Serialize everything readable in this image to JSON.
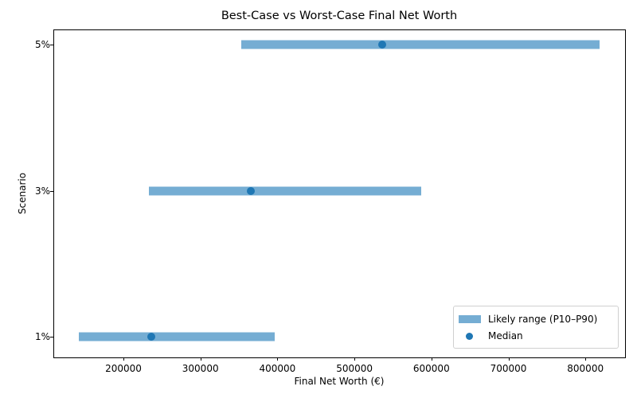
{
  "chart_data": {
    "type": "range",
    "title": "Best-Case vs Worst-Case Final Net Worth",
    "xlabel": "Final Net Worth (€)",
    "ylabel": "Scenario",
    "categories": [
      "1%",
      "3%",
      "5%"
    ],
    "series": [
      {
        "name": "Likely range (P10–P90)",
        "kind": "range",
        "low": [
          142000,
          233000,
          353000
        ],
        "high": [
          397000,
          587000,
          818000
        ]
      },
      {
        "name": "Median",
        "kind": "scatter",
        "values": [
          236000,
          365000,
          536000
        ]
      }
    ],
    "xlim": [
      40000,
      850000
    ],
    "xticks": [
      200000,
      300000,
      400000,
      500000,
      600000,
      700000,
      800000
    ],
    "xtick_labels": [
      "200000",
      "300000",
      "400000",
      "500000",
      "600000",
      "700000",
      "800000"
    ],
    "grid": false,
    "legend_position": "lower right",
    "colors": {
      "range": "#75add3",
      "median": "#1f77b4"
    }
  },
  "legend": {
    "items": [
      {
        "label": "Likely range (P10–P90)"
      },
      {
        "label": "Median"
      }
    ]
  }
}
